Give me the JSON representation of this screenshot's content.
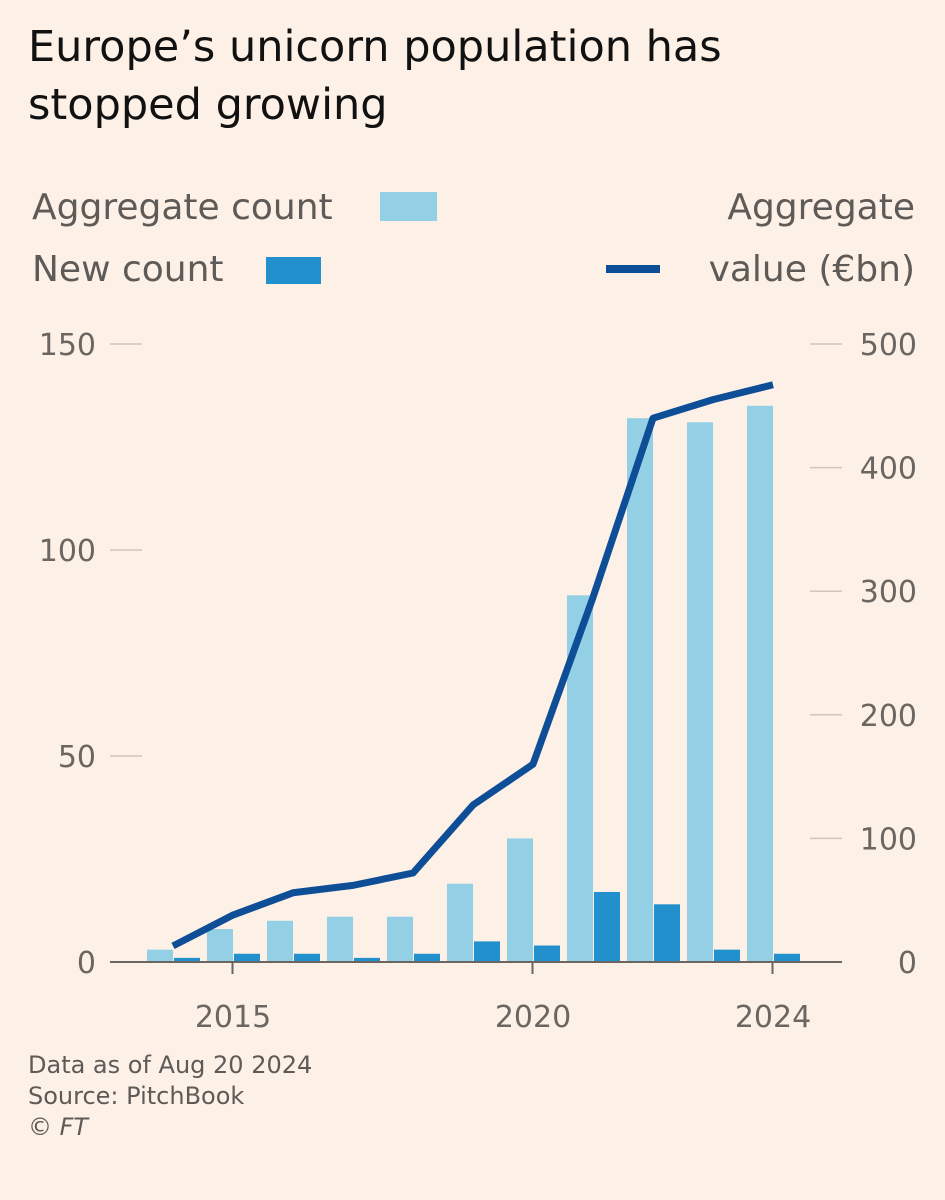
{
  "title_line1": "Europe’s unicorn population has",
  "title_line2": "stopped growing",
  "legend": {
    "aggregate_count": "Aggregate count",
    "new_count": "New count",
    "aggregate_value_line1": "Aggregate",
    "aggregate_value_line2": "value (€bn)"
  },
  "footer": {
    "data_as_of": "Data as of Aug 20 2024",
    "source": "Source: PitchBook",
    "copyright": "© FT"
  },
  "colors": {
    "aggregate_count": "#93d0e6",
    "new_count": "#2290cc",
    "aggregate_value": "#0e4e96",
    "background": "#fdf1e7"
  },
  "chart_data": {
    "type": "bar",
    "years": [
      2014,
      2015,
      2016,
      2017,
      2018,
      2019,
      2020,
      2021,
      2022,
      2023,
      2024
    ],
    "x_tick_labels": [
      {
        "year": 2015,
        "label": "2015"
      },
      {
        "year": 2020,
        "label": "2020"
      },
      {
        "year": 2024,
        "label": "2024"
      }
    ],
    "left_axis": {
      "ylim": [
        0,
        150
      ],
      "ticks": [
        0,
        50,
        100,
        150
      ],
      "tick_labels": [
        "0",
        "50",
        "100",
        "150"
      ]
    },
    "right_axis": {
      "ylim": [
        0,
        500
      ],
      "ticks": [
        0,
        100,
        200,
        300,
        400,
        500
      ],
      "tick_labels": [
        "0",
        "100",
        "200",
        "300",
        "400",
        "500"
      ]
    },
    "series": [
      {
        "name": "Aggregate count",
        "type": "bar",
        "axis": "left",
        "values": [
          3,
          8,
          10,
          11,
          11,
          19,
          30,
          89,
          132,
          131,
          135
        ]
      },
      {
        "name": "New count",
        "type": "bar",
        "axis": "left",
        "values": [
          1,
          2,
          2,
          1,
          2,
          5,
          4,
          17,
          14,
          3,
          2
        ]
      },
      {
        "name": "Aggregate value (€bn)",
        "type": "line",
        "axis": "right",
        "values": [
          13,
          38,
          56,
          62,
          72,
          127,
          160,
          295,
          440,
          455,
          467
        ]
      }
    ]
  }
}
